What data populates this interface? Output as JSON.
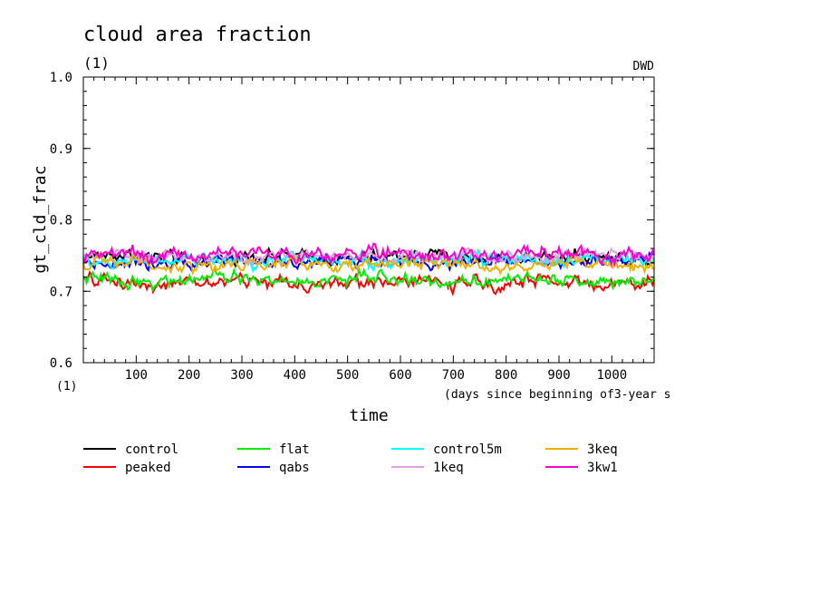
{
  "chart_data": {
    "type": "line",
    "title": "cloud area fraction",
    "title_unit": "(1)",
    "source_label": "DWD",
    "ylabel": "gt_cld_frac",
    "y_unit": "(1)",
    "xlabel": "time",
    "x_unit_note": "(days since beginning of3-year s",
    "xlim": [
      0,
      1080
    ],
    "ylim": [
      0.6,
      1.0
    ],
    "xticks": [
      100,
      200,
      300,
      400,
      500,
      600,
      700,
      800,
      900,
      1000
    ],
    "xtick_labels": [
      "100",
      "200",
      "300",
      "400",
      "500",
      "600",
      "700",
      "800",
      "900",
      "1000"
    ],
    "yticks": [
      0.6,
      0.7,
      0.8,
      0.9,
      1.0
    ],
    "ytick_labels": [
      "0.6",
      "0.7",
      "0.8",
      "0.9",
      "1.0"
    ],
    "grid": false,
    "legend_position": "bottom",
    "series": [
      {
        "name": "control",
        "color": "#000000",
        "mean": 0.748,
        "amplitude": 0.008
      },
      {
        "name": "peaked",
        "color": "#ff0000",
        "mean": 0.712,
        "amplitude": 0.009
      },
      {
        "name": "flat",
        "color": "#00ee00",
        "mean": 0.716,
        "amplitude": 0.008
      },
      {
        "name": "qabs",
        "color": "#0000ff",
        "mean": 0.742,
        "amplitude": 0.008
      },
      {
        "name": "control5m",
        "color": "#00ffff",
        "mean": 0.743,
        "amplitude": 0.009
      },
      {
        "name": "1keq",
        "color": "#e0a0e0",
        "mean": 0.749,
        "amplitude": 0.008
      },
      {
        "name": "3keq",
        "color": "#f0b000",
        "mean": 0.737,
        "amplitude": 0.008
      },
      {
        "name": "3kw1",
        "color": "#ff00cc",
        "mean": 0.752,
        "amplitude": 0.009
      }
    ]
  }
}
